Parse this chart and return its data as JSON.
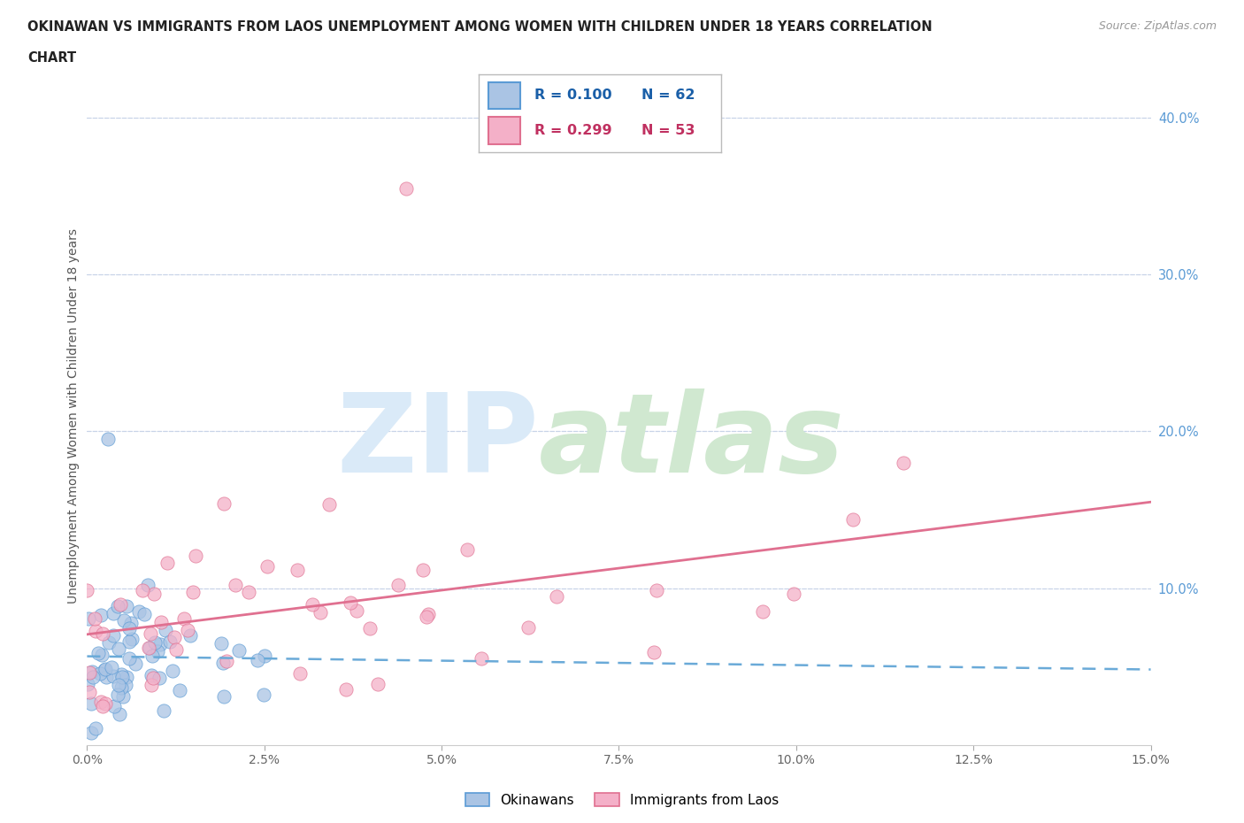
{
  "title_line1": "OKINAWAN VS IMMIGRANTS FROM LAOS UNEMPLOYMENT AMONG WOMEN WITH CHILDREN UNDER 18 YEARS CORRELATION",
  "title_line2": "CHART",
  "source_text": "Source: ZipAtlas.com",
  "ylabel": "Unemployment Among Women with Children Under 18 years",
  "xlim": [
    0.0,
    0.15
  ],
  "ylim": [
    0.0,
    0.42
  ],
  "xtick_labels": [
    "0.0%",
    "2.5%",
    "5.0%",
    "7.5%",
    "10.0%",
    "12.5%",
    "15.0%"
  ],
  "xtick_vals": [
    0.0,
    0.025,
    0.05,
    0.075,
    0.1,
    0.125,
    0.15
  ],
  "ytick_labels": [
    "10.0%",
    "20.0%",
    "30.0%",
    "40.0%"
  ],
  "ytick_vals": [
    0.1,
    0.2,
    0.3,
    0.4
  ],
  "okinawan_fill": "#aac4e4",
  "okinawan_edge": "#5b9bd5",
  "laos_fill": "#f4b0c8",
  "laos_edge": "#e07090",
  "trend_okinawan_color": "#6aaad8",
  "trend_laos_color": "#e07090",
  "R_okinawan": 0.1,
  "N_okinawan": 62,
  "R_laos": 0.299,
  "N_laos": 53,
  "background_color": "#ffffff",
  "grid_color": "#c8d4e8",
  "ytick_color": "#5b9bd5",
  "title_color": "#222222",
  "source_color": "#999999",
  "ylabel_color": "#555555",
  "xtick_color": "#666666",
  "legend_border": "#bbbbbb",
  "legend_ok_fill": "#aac4e4",
  "legend_ok_edge": "#5b9bd5",
  "legend_laos_fill": "#f4b0c8",
  "legend_laos_edge": "#e07090",
  "legend_ok_text_color": "#1a5fa8",
  "legend_laos_text_color": "#c03060",
  "watermark_zip_color": "#daeaf8",
  "watermark_atlas_color": "#d0e8d0"
}
